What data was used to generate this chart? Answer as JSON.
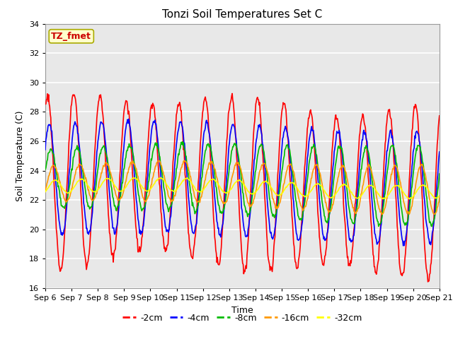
{
  "title": "Tonzi Soil Temperatures Set C",
  "xlabel": "Time",
  "ylabel": "Soil Temperature (C)",
  "ylim": [
    16,
    34
  ],
  "xtick_labels": [
    "Sep 6",
    "Sep 7",
    "Sep 8",
    "Sep 9",
    "Sep 10",
    "Sep 11",
    "Sep 12",
    "Sep 13",
    "Sep 14",
    "Sep 15",
    "Sep 16",
    "Sep 17",
    "Sep 18",
    "Sep 19",
    "Sep 20",
    "Sep 21"
  ],
  "annotation_text": "TZ_fmet",
  "annotation_bg": "#ffffcc",
  "annotation_border": "#aaaa00",
  "annotation_fg": "#cc0000",
  "colors": {
    "-2cm": "#ff0000",
    "-4cm": "#0000ff",
    "-8cm": "#00bb00",
    "-16cm": "#ff9900",
    "-32cm": "#ffff00"
  },
  "background_color": "#ffffff",
  "plot_bg": "#e8e8e8",
  "title_fontsize": 11,
  "label_fontsize": 9,
  "tick_fontsize": 8
}
